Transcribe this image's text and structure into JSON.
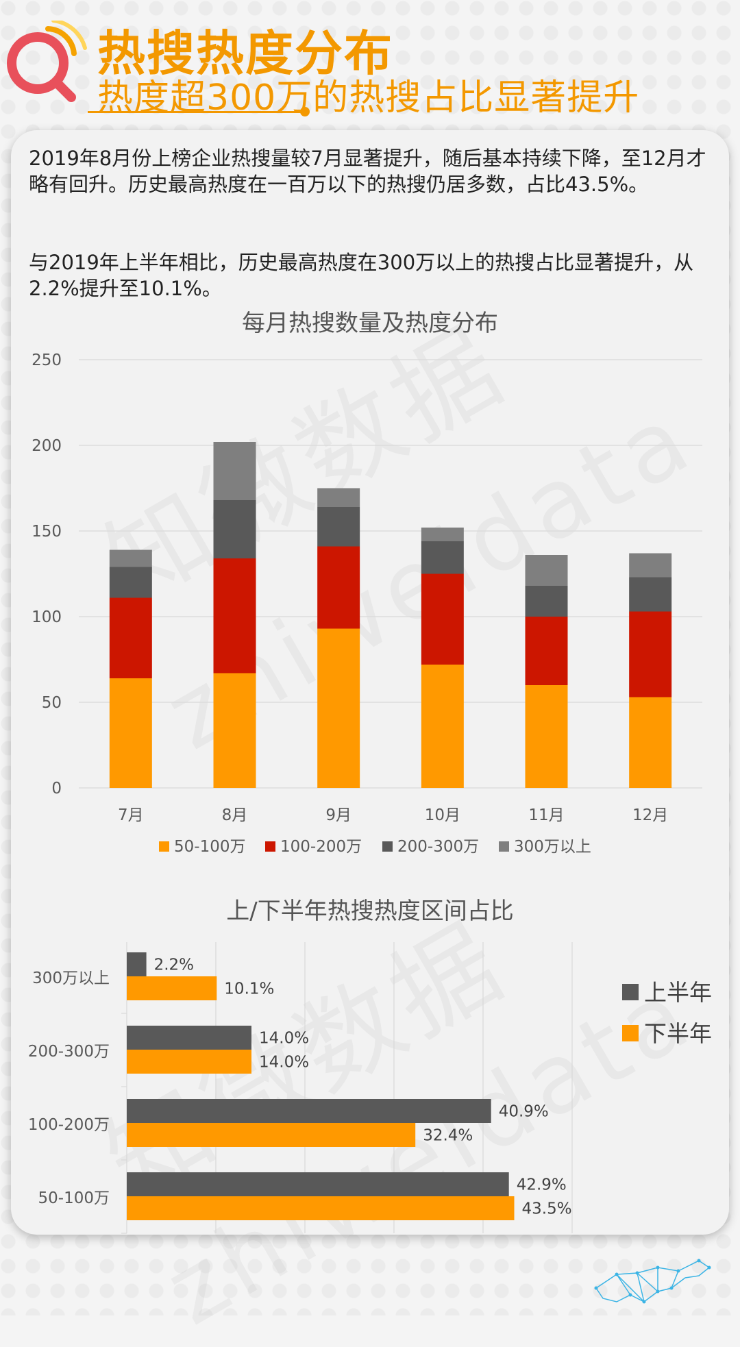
{
  "header": {
    "title": "热搜热度分布",
    "subtitle": "热度超300万的热搜占比显著提升"
  },
  "text": {
    "para1": "2019年8月份上榜企业热搜量较7月显著提升，随后基本持续下降，至12月才略有回升。历史最高热度在一百万以下的热搜仍居多数，占比43.5%。",
    "para2": "与2019年上半年相比，历史最高热度在300万以上的热搜占比显著提升，从2.2%提升至10.1%。"
  },
  "watermark": {
    "cn": "知微数据",
    "en": "zhiweidata"
  },
  "colors": {
    "orange": "#ff9900",
    "red": "#cc1600",
    "darkgray": "#595959",
    "gray": "#7f7f7f",
    "grid": "#d9d9d9",
    "accent": "#f39800"
  },
  "chart_data": [
    {
      "type": "bar",
      "stacked": true,
      "title": "每月热搜数量及热度分布",
      "categories": [
        "7月",
        "8月",
        "9月",
        "10月",
        "11月",
        "12月"
      ],
      "series": [
        {
          "name": "50-100万",
          "values": [
            64,
            67,
            93,
            72,
            60,
            53
          ]
        },
        {
          "name": "100-200万",
          "values": [
            47,
            67,
            48,
            53,
            40,
            50
          ]
        },
        {
          "name": "200-300万",
          "values": [
            18,
            34,
            23,
            19,
            18,
            20
          ]
        },
        {
          "name": "300万以上",
          "values": [
            10,
            34,
            11,
            8,
            18,
            14
          ]
        }
      ],
      "ylim": [
        0,
        250
      ],
      "yticks": [
        0,
        50,
        100,
        150,
        200,
        250
      ],
      "grid": true,
      "legend": "bottom"
    },
    {
      "type": "bar",
      "orientation": "horizontal",
      "title": "上/下半年热搜热度区间占比",
      "categories": [
        "300万以上",
        "200-300万",
        "100-200万",
        "50-100万"
      ],
      "series": [
        {
          "name": "上半年",
          "values": [
            2.2,
            14.0,
            40.9,
            42.9
          ],
          "labels": [
            "2.2%",
            "14.0%",
            "40.9%",
            "42.9%"
          ]
        },
        {
          "name": "下半年",
          "values": [
            10.1,
            14.0,
            32.4,
            43.5
          ],
          "labels": [
            "10.1%",
            "14.0%",
            "32.4%",
            "43.5%"
          ]
        }
      ],
      "xlim": [
        0,
        50
      ],
      "grid": true,
      "legend": "right"
    }
  ]
}
